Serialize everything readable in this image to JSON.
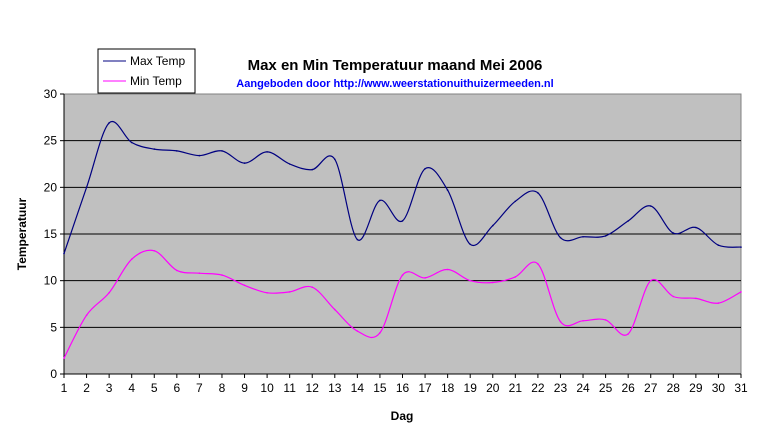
{
  "chart_data": {
    "type": "line",
    "title": "Max en Min Temperatuur maand Mei 2006",
    "subtitle": "Aangeboden door http://www.weerstationuithuizermeeden.nl",
    "xlabel": "Dag",
    "ylabel": "Temperatuur",
    "x": [
      1,
      2,
      3,
      4,
      5,
      6,
      7,
      8,
      9,
      10,
      11,
      12,
      13,
      14,
      15,
      16,
      17,
      18,
      19,
      20,
      21,
      22,
      23,
      24,
      25,
      26,
      27,
      28,
      29,
      30,
      31
    ],
    "xlim": [
      1,
      31
    ],
    "ylim": [
      0,
      30
    ],
    "yticks": [
      0,
      5,
      10,
      15,
      20,
      25,
      30
    ],
    "grid": true,
    "legend_position": "top-left",
    "plot_background": "#c0c0c0",
    "series": [
      {
        "name": "Max Temp",
        "color": "#000080",
        "values": [
          12.9,
          20.0,
          26.9,
          24.8,
          24.1,
          23.9,
          23.4,
          23.9,
          22.6,
          23.8,
          22.5,
          21.9,
          23.0,
          14.4,
          18.6,
          16.4,
          22.0,
          19.7,
          13.9,
          15.9,
          18.5,
          19.4,
          14.6,
          14.7,
          14.8,
          16.4,
          18.0,
          15.1,
          15.7,
          13.8,
          13.6
        ]
      },
      {
        "name": "Min Temp",
        "color": "#ff00ff",
        "values": [
          1.7,
          6.3,
          8.7,
          12.3,
          13.2,
          11.1,
          10.8,
          10.6,
          9.5,
          8.7,
          8.8,
          9.3,
          6.9,
          4.6,
          4.4,
          10.6,
          10.3,
          11.2,
          10.0,
          9.8,
          10.4,
          11.8,
          5.6,
          5.7,
          5.8,
          4.3,
          10.0,
          8.3,
          8.1,
          7.6,
          8.8
        ]
      }
    ]
  }
}
